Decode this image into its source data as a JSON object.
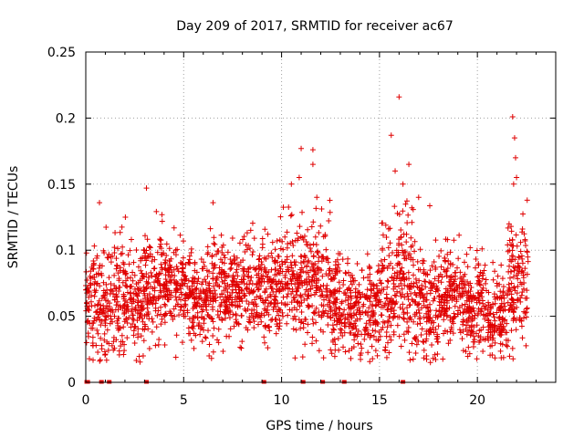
{
  "colors": {
    "series": "#e00000",
    "grid": "#a0a0a0",
    "axis": "#000000"
  },
  "chart_data": {
    "type": "scatter",
    "marker": "+",
    "title": "Day 209 of 2017, SRMTID for receiver ac67",
    "xlabel": "GPS time / hours",
    "ylabel": "SRMTID / TECUs",
    "xlim": [
      0,
      24
    ],
    "ylim": [
      0,
      0.25
    ],
    "xticks": [
      0,
      5,
      10,
      15,
      20
    ],
    "xtick_labels": [
      "0",
      "5",
      "10",
      "15",
      "20"
    ],
    "yticks": [
      0,
      0.05,
      0.1,
      0.15,
      0.2,
      0.25
    ],
    "ytick_labels": [
      "0",
      "0.05",
      "0.1",
      "0.15",
      "0.2",
      "0.25"
    ],
    "grid": true,
    "series": [
      {
        "name": "SRMTID",
        "generator": "dense ~2800 points spanning 0.0-22.6 h, values mostly 0.03-0.11 TECU",
        "segments": [
          {
            "x": [
              0.0,
              0.3
            ],
            "mean": 0.06,
            "sd": 0.018
          },
          {
            "x": [
              0.3,
              1.0
            ],
            "mean": 0.06,
            "sd": 0.025
          },
          {
            "x": [
              1.0,
              2.0
            ],
            "mean": 0.062,
            "sd": 0.022
          },
          {
            "x": [
              2.0,
              3.0
            ],
            "mean": 0.06,
            "sd": 0.02
          },
          {
            "x": [
              3.0,
              4.0
            ],
            "mean": 0.075,
            "sd": 0.02
          },
          {
            "x": [
              4.0,
              5.0
            ],
            "mean": 0.072,
            "sd": 0.018
          },
          {
            "x": [
              5.0,
              6.0
            ],
            "mean": 0.063,
            "sd": 0.018
          },
          {
            "x": [
              6.0,
              7.0
            ],
            "mean": 0.066,
            "sd": 0.018
          },
          {
            "x": [
              7.0,
              8.5
            ],
            "mean": 0.07,
            "sd": 0.018
          },
          {
            "x": [
              8.5,
              10.0
            ],
            "mean": 0.073,
            "sd": 0.02
          },
          {
            "x": [
              10.0,
              11.0
            ],
            "mean": 0.078,
            "sd": 0.022
          },
          {
            "x": [
              11.0,
              12.5
            ],
            "mean": 0.075,
            "sd": 0.023
          },
          {
            "x": [
              12.5,
              13.5
            ],
            "mean": 0.06,
            "sd": 0.018
          },
          {
            "x": [
              13.5,
              15.0
            ],
            "mean": 0.055,
            "sd": 0.017
          },
          {
            "x": [
              15.0,
              15.8
            ],
            "mean": 0.068,
            "sd": 0.022
          },
          {
            "x": [
              15.8,
              16.8
            ],
            "mean": 0.08,
            "sd": 0.028
          },
          {
            "x": [
              16.8,
              18.0
            ],
            "mean": 0.058,
            "sd": 0.02
          },
          {
            "x": [
              18.0,
              19.5
            ],
            "mean": 0.065,
            "sd": 0.018
          },
          {
            "x": [
              19.5,
              20.5
            ],
            "mean": 0.06,
            "sd": 0.018
          },
          {
            "x": [
              20.5,
              21.5
            ],
            "mean": 0.05,
            "sd": 0.015
          },
          {
            "x": [
              21.5,
              22.6
            ],
            "mean": 0.078,
            "sd": 0.022
          }
        ],
        "outliers": [
          [
            3.1,
            0.147
          ],
          [
            10.5,
            0.15
          ],
          [
            10.9,
            0.155
          ],
          [
            11.0,
            0.177
          ],
          [
            11.6,
            0.176
          ],
          [
            11.6,
            0.165
          ],
          [
            11.8,
            0.14
          ],
          [
            15.6,
            0.187
          ],
          [
            15.8,
            0.16
          ],
          [
            16.0,
            0.216
          ],
          [
            16.2,
            0.15
          ],
          [
            16.5,
            0.165
          ],
          [
            17.0,
            0.14
          ],
          [
            21.8,
            0.201
          ],
          [
            21.9,
            0.185
          ],
          [
            21.95,
            0.17
          ],
          [
            22.0,
            0.155
          ],
          [
            21.85,
            0.15
          ],
          [
            6.5,
            0.136
          ],
          [
            0.7,
            0.136
          ],
          [
            17.4,
            0.02
          ],
          [
            17.6,
            0.015
          ],
          [
            4.6,
            0.019
          ],
          [
            6.3,
            0.02
          ]
        ],
        "zeros_x": [
          0.05,
          0.1,
          0.8,
          1.2,
          3.1,
          9.1,
          11.1,
          12.1,
          13.2,
          16.2
        ]
      }
    ]
  }
}
